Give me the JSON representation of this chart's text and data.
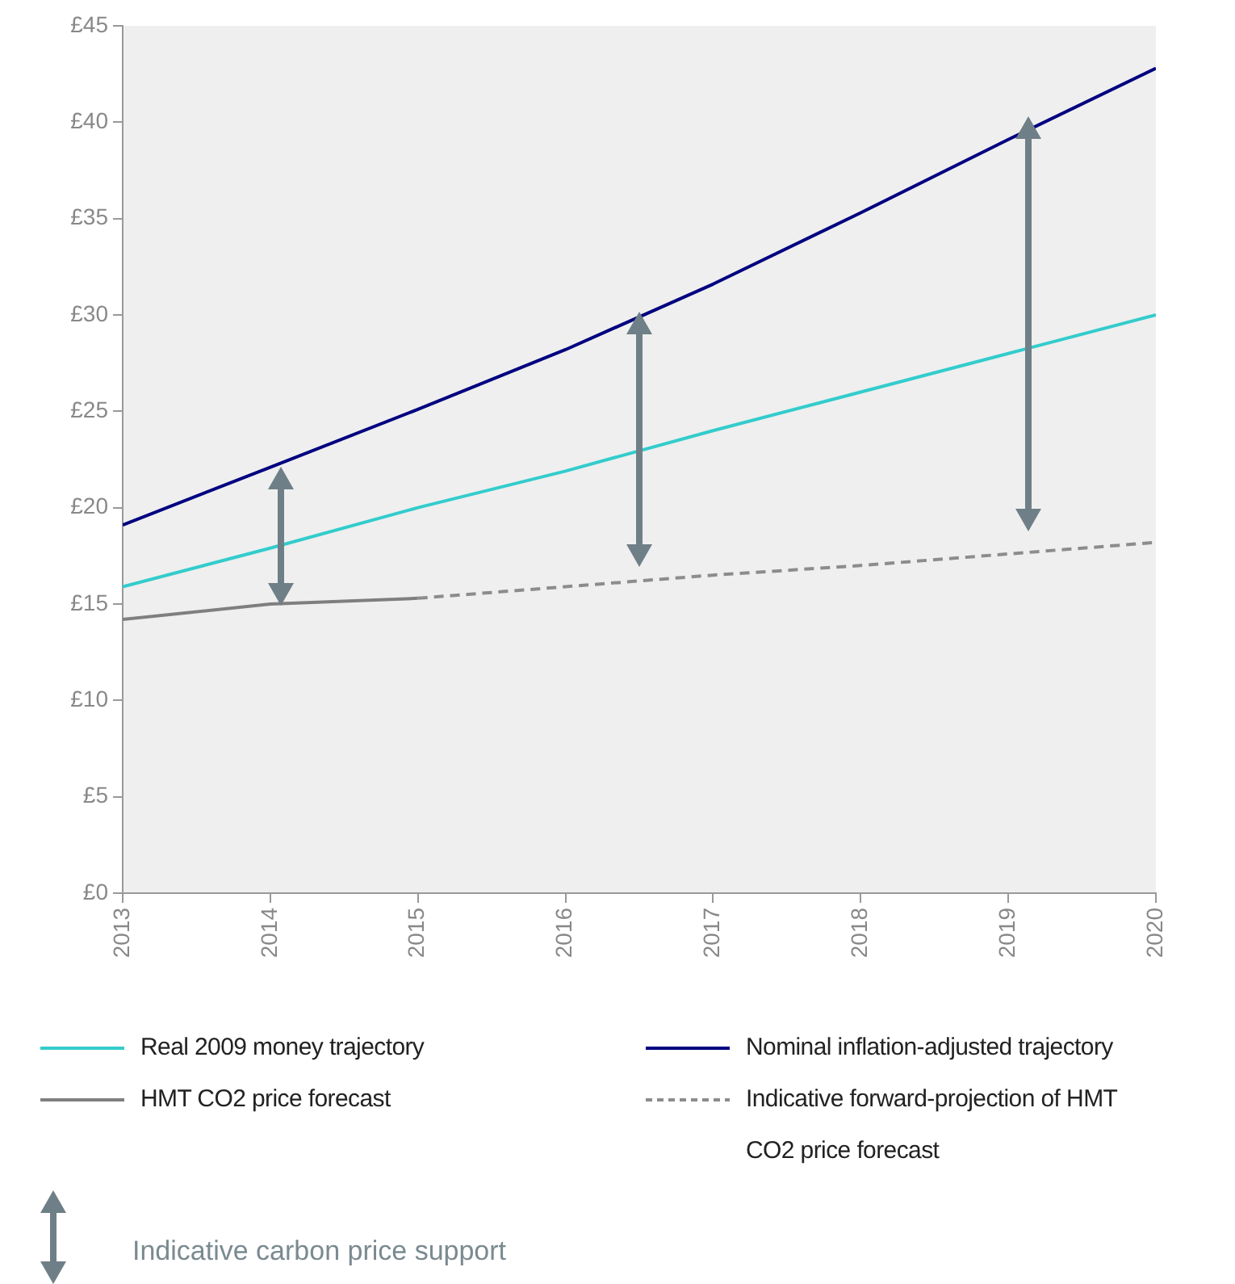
{
  "chart_data": {
    "type": "line",
    "x": [
      2013,
      2014,
      2015,
      2016,
      2017,
      2018,
      2019,
      2020
    ],
    "xlim": [
      2013,
      2020
    ],
    "xticks": [
      2013,
      2014,
      2015,
      2016,
      2017,
      2018,
      2019,
      2020
    ],
    "ylim": [
      0,
      45
    ],
    "yticks": [
      {
        "value": 0,
        "label": "£0"
      },
      {
        "value": 5,
        "label": "£5"
      },
      {
        "value": 10,
        "label": "£10"
      },
      {
        "value": 15,
        "label": "£15"
      },
      {
        "value": 20,
        "label": "£20"
      },
      {
        "value": 25,
        "label": "£25"
      },
      {
        "value": 30,
        "label": "£30"
      },
      {
        "value": 35,
        "label": "£35"
      },
      {
        "value": 40,
        "label": "£40"
      },
      {
        "value": 45,
        "label": "£45"
      }
    ],
    "series": [
      {
        "name": "Real 2009 money trajectory",
        "color": "#33cccc",
        "values": [
          15.9,
          17.9,
          20.0,
          21.9,
          24.0,
          26.0,
          28.0,
          30.0
        ]
      },
      {
        "name": "Nominal inflation-adjusted trajectory",
        "color": "#000080",
        "values": [
          19.1,
          22.1,
          25.1,
          28.2,
          31.6,
          35.3,
          39.1,
          42.8
        ]
      },
      {
        "name": "HMT CO2 price forecast",
        "color": "#7f7f7f",
        "values": [
          14.2,
          15.0,
          15.3,
          null,
          null,
          null,
          null,
          null
        ]
      },
      {
        "name": "Indicative forward-projection of HMT CO2 price forecast",
        "color": "#8c8c8c",
        "line_style": "dashed",
        "values": [
          null,
          null,
          15.3,
          15.9,
          16.5,
          17.0,
          17.6,
          18.2
        ]
      }
    ],
    "marker": "none",
    "line_style": "solid",
    "legend": "bottom",
    "annotations": [
      "Indicative carbon price support"
    ]
  }
}
